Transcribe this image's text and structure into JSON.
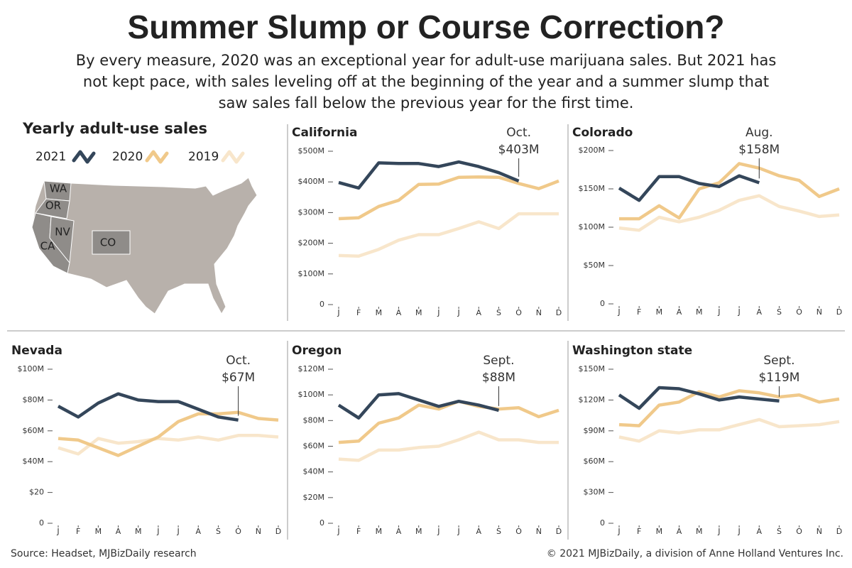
{
  "header": {
    "title": "Summer Slump or Course Correction?",
    "subtitle": [
      "By every measure, 2020 was an exceptional year for adult-use marijuana sales. But 2021 has",
      "not kept pace, with sales leveling off at the beginning of the year and a summer slump that",
      "saw sales fall below the previous year for the first time."
    ]
  },
  "legend": {
    "title": "Yearly adult-use sales",
    "entries": [
      {
        "name": "2021",
        "color": "#34465a"
      },
      {
        "name": "2020",
        "color": "#f0c98a"
      },
      {
        "name": "2019",
        "color": "#f8e6cb"
      }
    ]
  },
  "map": {
    "labels": [
      "WA",
      "OR",
      "NV",
      "CA",
      "CO"
    ]
  },
  "chart_data": [
    {
      "type": "line",
      "title": "California",
      "categories": [
        "J",
        "F",
        "M",
        "A",
        "M",
        "J",
        "J",
        "A",
        "S",
        "O",
        "N",
        "D"
      ],
      "series": [
        {
          "values": [
            398,
            380,
            462,
            460,
            460,
            450,
            465,
            450,
            430,
            403,
            null,
            null
          ]
        },
        {
          "values": [
            280,
            283,
            320,
            340,
            392,
            393,
            415,
            416,
            415,
            395,
            378,
            403
          ]
        },
        {
          "values": [
            160,
            158,
            180,
            210,
            228,
            228,
            248,
            270,
            248,
            296,
            296,
            296
          ]
        }
      ],
      "ylim": [
        0,
        500
      ],
      "yticks": [
        0,
        {
          "value": 100,
          "label": "$100M"
        },
        {
          "value": 200,
          "label": "$200M"
        },
        {
          "value": 300,
          "label": "$300M"
        },
        {
          "value": 400,
          "label": "$400M"
        },
        {
          "value": 500,
          "label": "$500M"
        }
      ],
      "annotation": [
        "Oct.",
        "$403M"
      ]
    },
    {
      "type": "line",
      "title": "Colorado",
      "categories": [
        "J",
        "F",
        "M",
        "A",
        "M",
        "J",
        "J",
        "A",
        "S",
        "O",
        "N",
        "D"
      ],
      "series": [
        {
          "values": [
            151,
            135,
            166,
            166,
            157,
            153,
            167,
            158,
            null,
            null,
            null,
            null
          ]
        },
        {
          "values": [
            111,
            111,
            128,
            112,
            150,
            158,
            183,
            177,
            167,
            161,
            140,
            150
          ]
        },
        {
          "values": [
            99,
            96,
            113,
            107,
            113,
            122,
            135,
            141,
            127,
            121,
            114,
            116
          ]
        }
      ],
      "ylim": [
        0,
        200
      ],
      "yticks": [
        0,
        {
          "value": 50,
          "label": "$50M"
        },
        {
          "value": 100,
          "label": "$100M"
        },
        {
          "value": 150,
          "label": "$150M"
        },
        {
          "value": 200,
          "label": "$200M"
        }
      ],
      "annotation": [
        "Aug.",
        "$158M"
      ]
    },
    {
      "type": "line",
      "title": "Nevada",
      "categories": [
        "J",
        "F",
        "M",
        "A",
        "M",
        "J",
        "J",
        "A",
        "S",
        "O",
        "N",
        "D"
      ],
      "series": [
        {
          "values": [
            76,
            69,
            78,
            84,
            80,
            79,
            79,
            74,
            69,
            67,
            null,
            null
          ]
        },
        {
          "values": [
            55,
            54,
            49,
            44,
            50,
            56,
            66,
            71,
            71,
            72,
            68,
            67
          ]
        },
        {
          "values": [
            49,
            45,
            55,
            52,
            53,
            55,
            54,
            56,
            54,
            57,
            57,
            56
          ]
        }
      ],
      "ylim": [
        0,
        100
      ],
      "yticks": [
        0,
        {
          "value": 20,
          "label": "$20"
        },
        {
          "value": 40,
          "label": "$40M"
        },
        {
          "value": 60,
          "label": "$60M"
        },
        {
          "value": 80,
          "label": "$80M"
        },
        {
          "value": 100,
          "label": "$100M"
        }
      ],
      "annotation": [
        "Oct.",
        "$67M"
      ]
    },
    {
      "type": "line",
      "title": "Oregon",
      "categories": [
        "J",
        "F",
        "M",
        "A",
        "M",
        "J",
        "J",
        "A",
        "S",
        "O",
        "N",
        "D"
      ],
      "series": [
        {
          "values": [
            92,
            82,
            100,
            101,
            96,
            91,
            95,
            92,
            88,
            null,
            null,
            null
          ]
        },
        {
          "values": [
            63,
            64,
            78,
            82,
            92,
            89,
            95,
            91,
            89,
            90,
            83,
            88
          ]
        },
        {
          "values": [
            50,
            49,
            57,
            57,
            59,
            60,
            65,
            71,
            65,
            65,
            63,
            63
          ]
        }
      ],
      "ylim": [
        0,
        120
      ],
      "yticks": [
        0,
        {
          "value": 20,
          "label": "$20M"
        },
        {
          "value": 40,
          "label": "$40M"
        },
        {
          "value": 60,
          "label": "$60M"
        },
        {
          "value": 80,
          "label": "$80M"
        },
        {
          "value": 100,
          "label": "$100M"
        },
        {
          "value": 120,
          "label": "$120M"
        }
      ],
      "annotation": [
        "Sept.",
        "$88M"
      ]
    },
    {
      "type": "line",
      "title": "Washington state",
      "categories": [
        "J",
        "F",
        "M",
        "A",
        "M",
        "J",
        "J",
        "A",
        "S",
        "O",
        "N",
        "D"
      ],
      "series": [
        {
          "values": [
            125,
            112,
            132,
            131,
            126,
            120,
            123,
            121,
            119,
            null,
            null,
            null
          ]
        },
        {
          "values": [
            96,
            95,
            115,
            118,
            128,
            123,
            129,
            127,
            123,
            125,
            118,
            121
          ]
        },
        {
          "values": [
            84,
            80,
            90,
            88,
            91,
            91,
            96,
            101,
            94,
            95,
            96,
            99
          ]
        }
      ],
      "ylim": [
        0,
        150
      ],
      "yticks": [
        0,
        {
          "value": 30,
          "label": "$30M"
        },
        {
          "value": 60,
          "label": "$60M"
        },
        {
          "value": 90,
          "label": "$90M"
        },
        {
          "value": 120,
          "label": "$120M"
        },
        {
          "value": 150,
          "label": "$150M"
        }
      ],
      "annotation": [
        "Sept.",
        "$119M"
      ]
    }
  ],
  "footer": {
    "source": "Source: Headset, MJBizDaily research",
    "credit": "© 2021 MJBizDaily, a division of Anne Holland Ventures Inc."
  }
}
